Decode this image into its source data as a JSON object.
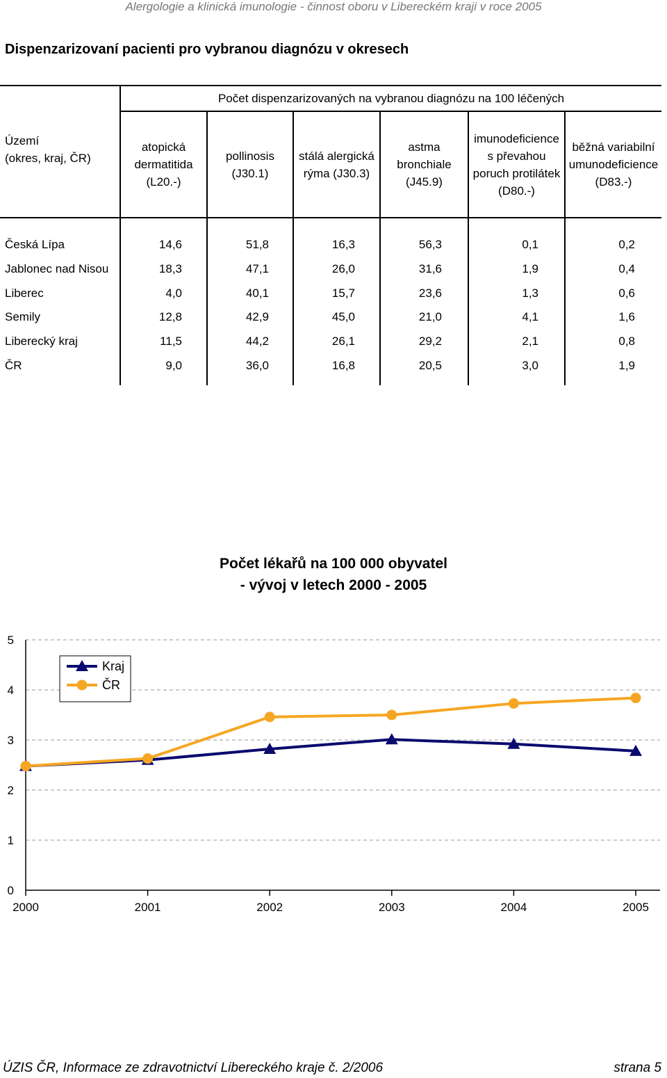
{
  "header": "Alergologie a klinická imunologie - činnost oboru v Libereckém kraji v roce 2005",
  "title": "Dispenzarizovaní pacienti pro vybranou diagnózu v okresech",
  "table": {
    "group_header": "Počet dispenzarizovaných na vybranou diagnózu na 100 léčených",
    "row_header_lines": [
      "Území",
      "(okres, kraj, ČR)"
    ],
    "columns": [
      {
        "lines": [
          "atopická",
          "dermatitida",
          "(L20.-)"
        ]
      },
      {
        "lines": [
          "pollinosis",
          "(J30.1)"
        ]
      },
      {
        "lines": [
          "stálá alergická",
          "rýma (J30.3)"
        ]
      },
      {
        "lines": [
          "astma",
          "bronchiale",
          "(J45.9)"
        ]
      },
      {
        "lines": [
          "imunodeficience",
          "s převahou",
          "poruch protilátek",
          "(D80.-)"
        ]
      },
      {
        "lines": [
          "běžná variabilní",
          "umunodeficience",
          "(D83.-)"
        ]
      }
    ],
    "rows": [
      {
        "name": "Česká Lípa",
        "values": [
          "14,6",
          "51,8",
          "16,3",
          "56,3",
          "0,1",
          "0,2"
        ]
      },
      {
        "name": "Jablonec nad Nisou",
        "values": [
          "18,3",
          "47,1",
          "26,0",
          "31,6",
          "1,9",
          "0,4"
        ]
      },
      {
        "name": "Liberec",
        "values": [
          "4,0",
          "40,1",
          "15,7",
          "23,6",
          "1,3",
          "0,6"
        ]
      },
      {
        "name": "Semily",
        "values": [
          "12,8",
          "42,9",
          "45,0",
          "21,0",
          "4,1",
          "1,6"
        ]
      },
      {
        "name": "Liberecký kraj",
        "values": [
          "11,5",
          "44,2",
          "26,1",
          "29,2",
          "2,1",
          "0,8"
        ]
      },
      {
        "name": "ČR",
        "values": [
          "9,0",
          "36,0",
          "16,8",
          "20,5",
          "3,0",
          "1,9"
        ]
      }
    ]
  },
  "chart_data": {
    "type": "line",
    "title_lines": [
      "Počet lékařů na 100 000 obyvatel",
      "- vývoj v letech 2000 - 2005"
    ],
    "xlabel": "",
    "ylabel": "",
    "x": [
      "2000",
      "2001",
      "2002",
      "2003",
      "2004",
      "2005"
    ],
    "ylim": [
      0,
      5
    ],
    "yticks": [
      "0",
      "1",
      "2",
      "3",
      "4",
      "5"
    ],
    "grid": "horizontal dashed",
    "legend_position": "top-left",
    "series": [
      {
        "name": "Kraj",
        "values": [
          2.48,
          2.6,
          2.82,
          3.01,
          2.92,
          2.78
        ],
        "color": "#0a0a6e",
        "marker": "triangle"
      },
      {
        "name": "ČR",
        "values": [
          2.48,
          2.63,
          3.46,
          3.5,
          3.73,
          3.84
        ],
        "color": "#f5a623",
        "marker": "circle"
      }
    ]
  },
  "footer": {
    "left": "ÚZIS ČR, Informace ze zdravotnictví Libereckého kraje č. 2/2006",
    "right": "strana 5"
  }
}
